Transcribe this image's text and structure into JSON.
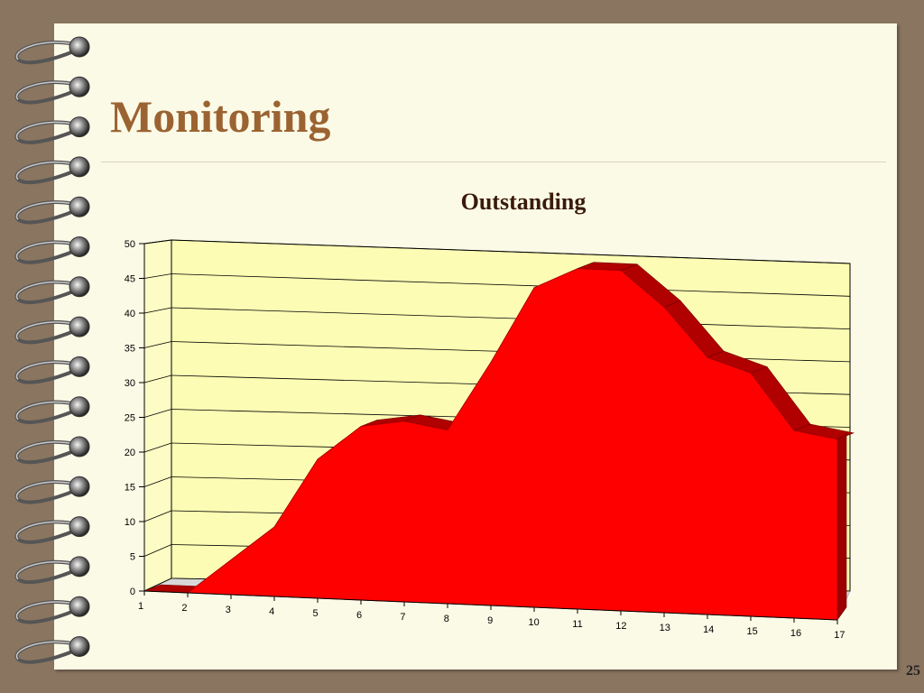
{
  "slide": {
    "title": "Monitoring",
    "page_number": "25"
  },
  "colors": {
    "background": "#8a7560",
    "page": "#fbfae6",
    "title": "#9b6332",
    "plot_area": "#fdfcb4",
    "area_fill": "#ff0000",
    "area_edge": "#b00000"
  },
  "chart_data": {
    "type": "area",
    "style": "3d",
    "title": "Outstanding",
    "xlabel": "",
    "ylabel": "",
    "x": [
      1,
      2,
      3,
      4,
      5,
      6,
      7,
      8,
      9,
      10,
      11,
      12,
      13,
      14,
      15,
      16,
      17
    ],
    "series": [
      {
        "values": [
          0,
          0,
          5,
          10,
          20,
          25,
          26,
          25,
          35,
          46,
          49,
          49,
          44,
          37,
          35,
          27,
          26
        ]
      }
    ],
    "y_ticks": [
      0,
      5,
      10,
      15,
      20,
      25,
      30,
      35,
      40,
      45,
      50
    ],
    "ylim": [
      0,
      50
    ],
    "grid": true,
    "legend": "none"
  }
}
